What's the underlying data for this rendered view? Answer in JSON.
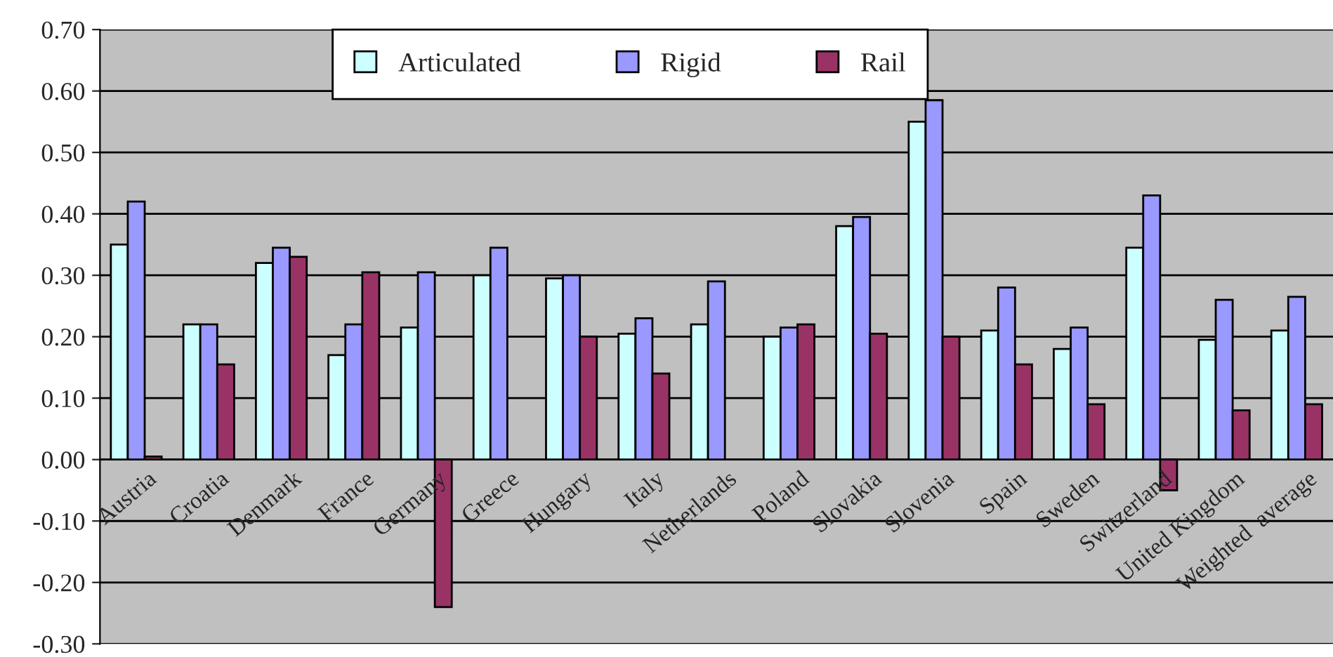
{
  "chart_data": {
    "type": "bar",
    "categories": [
      "Austria",
      "Croatia",
      "Denmark",
      "France",
      "Germany",
      "Greece",
      "Hungary",
      "Italy",
      "Netherlands",
      "Poland",
      "Slovakia",
      "Slovenia",
      "Spain",
      "Sweden",
      "Switzerland",
      "United Kingdom",
      "Weighted  average"
    ],
    "series": [
      {
        "name": "Articulated",
        "color": "#ccffff",
        "values": [
          0.35,
          0.22,
          0.32,
          0.17,
          0.215,
          0.3,
          0.295,
          0.205,
          0.22,
          0.2,
          0.38,
          0.55,
          0.21,
          0.18,
          0.345,
          0.195,
          0.21
        ]
      },
      {
        "name": "Rigid",
        "color": "#9999ff",
        "values": [
          0.42,
          0.22,
          0.345,
          0.22,
          0.305,
          0.345,
          0.3,
          0.23,
          0.29,
          0.215,
          0.395,
          0.585,
          0.28,
          0.215,
          0.43,
          0.26,
          0.265
        ]
      },
      {
        "name": "Rail",
        "color": "#993366",
        "values": [
          0.005,
          0.155,
          0.33,
          0.305,
          -0.24,
          null,
          0.2,
          0.14,
          null,
          0.22,
          0.205,
          0.2,
          0.155,
          0.09,
          -0.05,
          0.08,
          0.09
        ]
      }
    ],
    "ylim": [
      -0.3,
      0.7
    ],
    "yticks": [
      {
        "value": -0.3,
        "label": "-0.30"
      },
      {
        "value": -0.2,
        "label": "-0.20"
      },
      {
        "value": -0.1,
        "label": "-0.10"
      },
      {
        "value": 0,
        "label": "0.00"
      },
      {
        "value": 0.1,
        "label": "0.10"
      },
      {
        "value": 0.2,
        "label": "0.20"
      },
      {
        "value": 0.3,
        "label": "0.30"
      },
      {
        "value": 0.4,
        "label": "0.40"
      },
      {
        "value": 0.5,
        "label": "0.50"
      },
      {
        "value": 0.6,
        "label": "0.60"
      },
      {
        "value": 0.7,
        "label": "0.70"
      }
    ],
    "grid": "y",
    "legend": "top"
  }
}
